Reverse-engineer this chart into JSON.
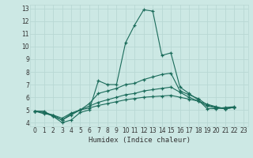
{
  "title": "",
  "xlabel": "Humidex (Indice chaleur)",
  "bg_color": "#cce8e4",
  "grid_color": "#b8d8d4",
  "line_color": "#1a6b5a",
  "xlim": [
    -0.5,
    23.5
  ],
  "ylim": [
    3.7,
    13.3
  ],
  "xticks": [
    0,
    1,
    2,
    3,
    4,
    5,
    6,
    7,
    8,
    9,
    10,
    11,
    12,
    13,
    14,
    15,
    16,
    17,
    18,
    19,
    20,
    21,
    22,
    23
  ],
  "yticks": [
    4,
    5,
    6,
    7,
    8,
    9,
    10,
    11,
    12,
    13
  ],
  "series": [
    {
      "x": [
        0,
        1,
        2,
        3,
        4,
        5,
        6,
        7,
        8,
        9,
        10,
        11,
        12,
        13,
        14,
        15,
        16,
        17,
        18,
        19,
        20,
        21,
        22
      ],
      "y": [
        4.9,
        4.9,
        4.5,
        4.0,
        4.2,
        4.8,
        5.0,
        7.3,
        7.0,
        7.0,
        10.3,
        11.7,
        12.9,
        12.8,
        9.3,
        9.5,
        6.8,
        6.3,
        5.8,
        5.1,
        5.1,
        5.2,
        5.25
      ]
    },
    {
      "x": [
        0,
        1,
        2,
        3,
        4,
        5,
        6,
        7,
        8,
        9,
        10,
        11,
        12,
        13,
        14,
        15,
        16,
        17,
        18,
        19,
        20,
        21,
        22
      ],
      "y": [
        4.9,
        4.8,
        4.5,
        4.2,
        4.6,
        5.0,
        5.5,
        6.3,
        6.5,
        6.7,
        7.0,
        7.1,
        7.4,
        7.6,
        7.8,
        7.9,
        6.5,
        6.2,
        5.9,
        5.4,
        5.2,
        5.1,
        5.2
      ]
    },
    {
      "x": [
        0,
        1,
        2,
        3,
        4,
        5,
        6,
        7,
        8,
        9,
        10,
        11,
        12,
        13,
        14,
        15,
        16,
        17,
        18,
        19,
        20,
        21,
        22
      ],
      "y": [
        4.9,
        4.8,
        4.6,
        4.2,
        4.7,
        5.0,
        5.3,
        5.6,
        5.8,
        6.0,
        6.2,
        6.3,
        6.5,
        6.6,
        6.7,
        6.8,
        6.4,
        6.0,
        5.7,
        5.3,
        5.15,
        5.1,
        5.2
      ]
    },
    {
      "x": [
        0,
        1,
        2,
        3,
        4,
        5,
        6,
        7,
        8,
        9,
        10,
        11,
        12,
        13,
        14,
        15,
        16,
        17,
        18,
        19,
        20,
        21,
        22
      ],
      "y": [
        4.9,
        4.7,
        4.6,
        4.35,
        4.75,
        5.0,
        5.15,
        5.35,
        5.5,
        5.65,
        5.8,
        5.9,
        6.0,
        6.05,
        6.1,
        6.15,
        6.0,
        5.85,
        5.7,
        5.45,
        5.25,
        5.1,
        5.2
      ]
    }
  ]
}
